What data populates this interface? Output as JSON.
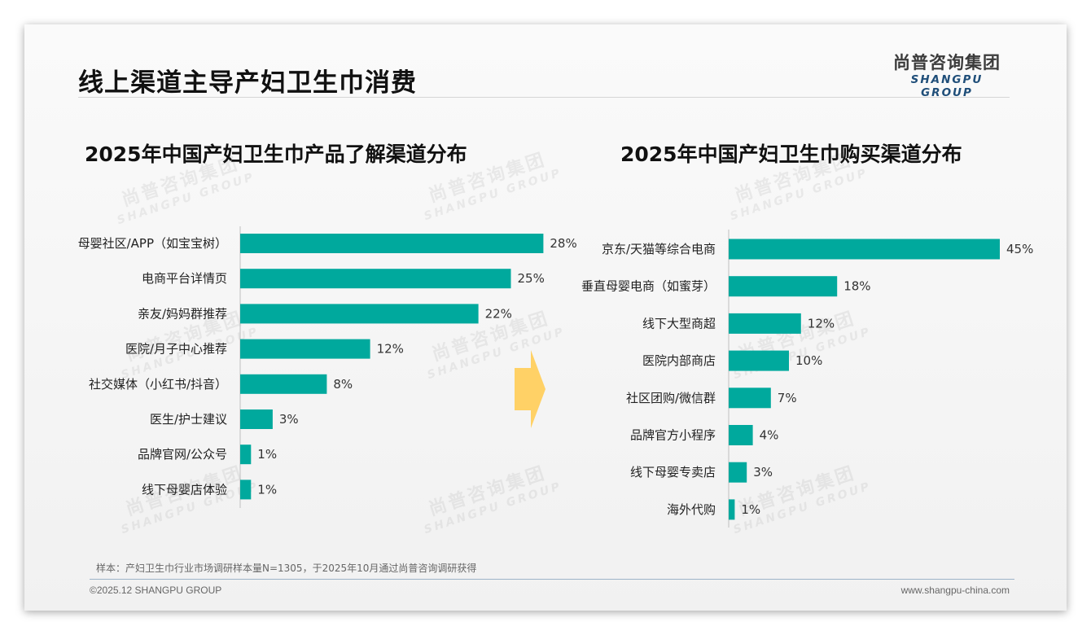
{
  "header": {
    "title": "线上渠道主导产妇卫生巾消费",
    "logo_cn": "尚普咨询集团",
    "logo_en": "SHANGPU GROUP"
  },
  "watermark": {
    "cn": "尚普咨询集团",
    "en": "SHANGPU GROUP"
  },
  "footer": {
    "note": "样本：产妇卫生巾行业市场调研样本量N=1305，于2025年10月通过尚普咨询调研获得",
    "copyright": "©2025.12 SHANGPU GROUP",
    "website": "www.shangpu-china.com"
  },
  "colors": {
    "bar": "#00a99d",
    "arrow": "#ffd166"
  },
  "chart_data": [
    {
      "type": "bar",
      "orientation": "horizontal",
      "title": "2025年中国产妇卫生巾产品了解渠道分布",
      "categories": [
        "母婴社区/APP（如宝宝树）",
        "电商平台详情页",
        "亲友/妈妈群推荐",
        "医院/月子中心推荐",
        "社交媒体（小红书/抖音）",
        "医生/护士建议",
        "品牌官网/公众号",
        "线下母婴店体验"
      ],
      "values": [
        28,
        25,
        22,
        12,
        8,
        3,
        1,
        1
      ],
      "labels": [
        "28%",
        "25%",
        "22%",
        "12%",
        "8%",
        "3%",
        "1%",
        "1%"
      ],
      "unit": "%"
    },
    {
      "type": "bar",
      "orientation": "horizontal",
      "title": "2025年中国产妇卫生巾购买渠道分布",
      "categories": [
        "京东/天猫等综合电商",
        "垂直母婴电商（如蜜芽）",
        "线下大型商超",
        "医院内部商店",
        "社区团购/微信群",
        "品牌官方小程序",
        "线下母婴专卖店",
        "海外代购"
      ],
      "values": [
        45,
        18,
        12,
        10,
        7,
        4,
        3,
        1
      ],
      "labels": [
        "45%",
        "18%",
        "12%",
        "10%",
        "7%",
        "4%",
        "3%",
        "1%"
      ],
      "unit": "%"
    }
  ]
}
